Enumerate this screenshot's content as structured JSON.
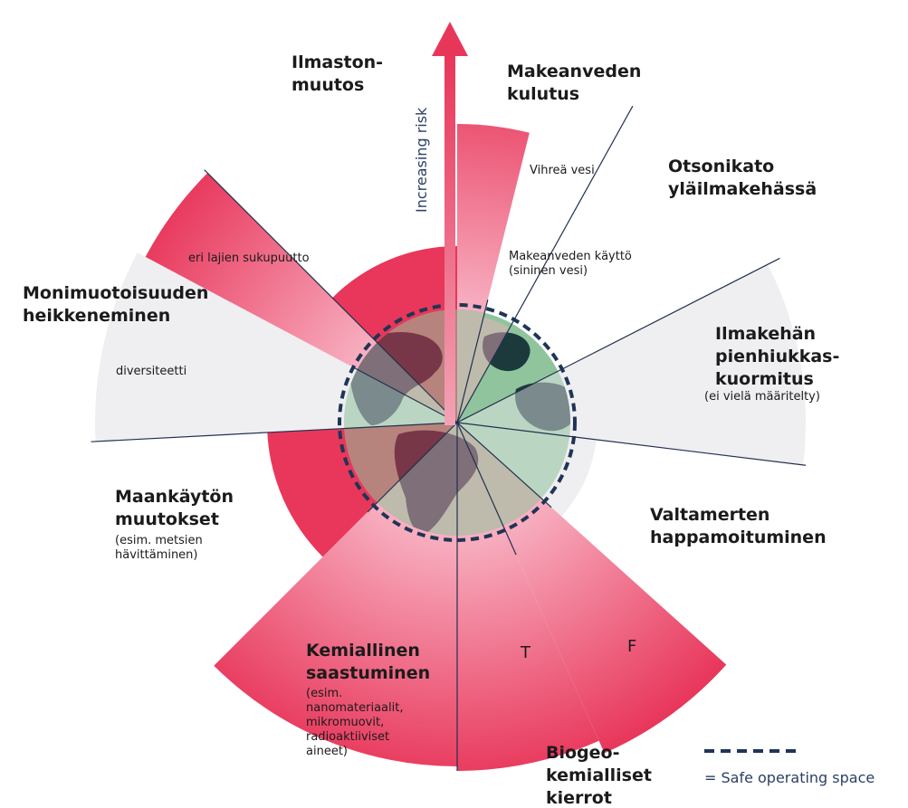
{
  "boundaries": [
    {
      "name": [
        "Ilmaston-",
        "muutos"
      ],
      "note": []
    },
    {
      "name": [
        "Makeanveden",
        "kulutus"
      ],
      "note": []
    },
    {
      "name": [
        "Otsonikato",
        "yläilmakehässä"
      ],
      "note": []
    },
    {
      "name": [
        "Ilmakehän",
        "pienhiukkas-",
        "kuormitus"
      ],
      "note": [
        "(ei vielä määritelty)"
      ]
    },
    {
      "name": [
        "Valtamerten",
        "happamoituminen"
      ],
      "note": []
    },
    {
      "name": [
        "Biogeo-",
        "kemialliset",
        "kierrot"
      ],
      "note": []
    },
    {
      "name": [
        "Kemiallinen",
        "saastuminen"
      ],
      "note": [
        "(esim.",
        "nanomateriaalit,",
        "mikromuovit,",
        "radioaktiiviset",
        "aineet)"
      ]
    },
    {
      "name": [
        "Maankäytön",
        "muutokset"
      ],
      "note": [
        "(esim. metsien",
        "hävittäminen)"
      ]
    },
    {
      "name": [
        "Monimuotoisuuden",
        "heikkeneminen"
      ],
      "note": []
    }
  ],
  "inner_labels": [
    "Vihreä vesi",
    "Makeanveden käyttö",
    "(sininen vesi)",
    "diversiteetti",
    "eri lajien sukupuutto",
    "T",
    "F"
  ],
  "axis_label": "Increasing risk",
  "legend": "= Safe operating space"
}
